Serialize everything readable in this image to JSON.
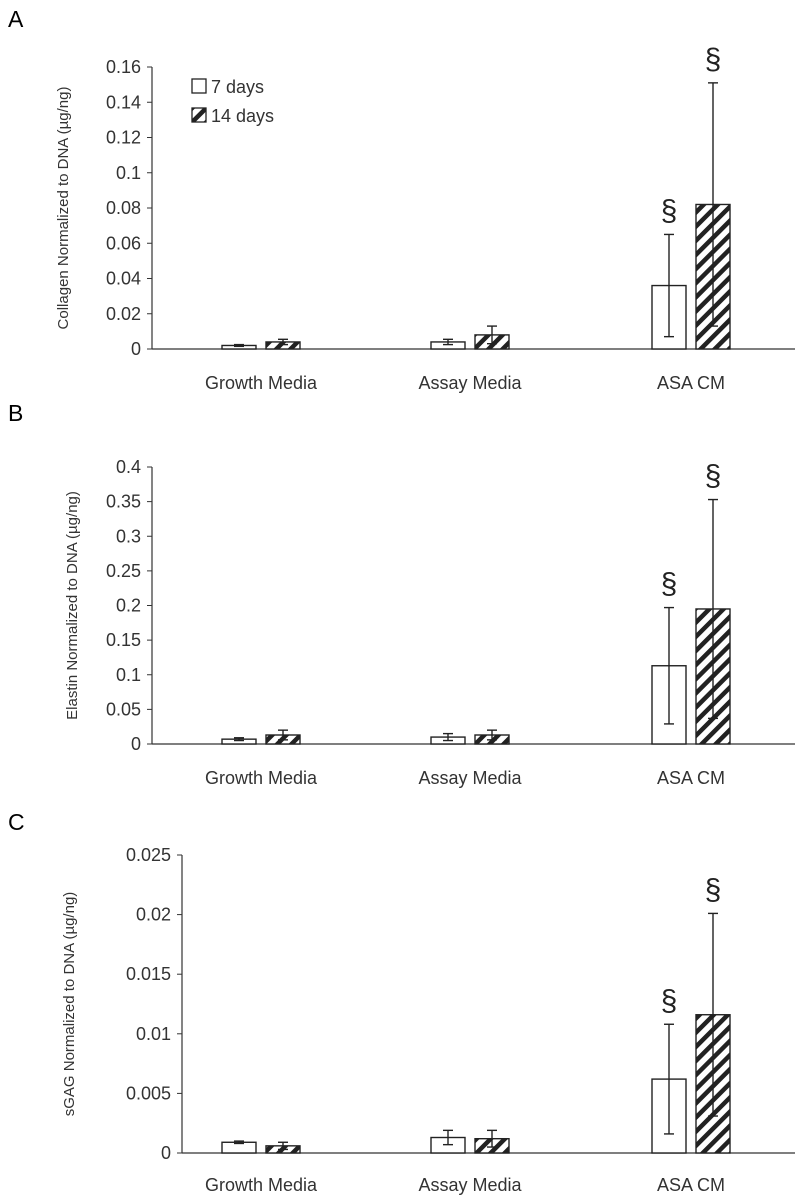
{
  "legend": [
    "7 days",
    "14 days"
  ],
  "chart_data": [
    {
      "panel": "A",
      "type": "bar",
      "ylabel": "Collagen Normalized to DNA (µg/ng)",
      "ylim": [
        0,
        0.16
      ],
      "yticks": [
        "0",
        "0.02",
        "0.04",
        "0.06",
        "0.08",
        "0.1",
        "0.12",
        "0.14",
        "0.16"
      ],
      "categories": [
        "Growth Media",
        "Assay Media",
        "ASA CM"
      ],
      "series": [
        {
          "name": "7 days",
          "values": [
            0.002,
            0.004,
            0.036
          ],
          "errors": [
            0.0005,
            0.0015,
            0.029
          ]
        },
        {
          "name": "14 days",
          "values": [
            0.004,
            0.008,
            0.082
          ],
          "errors": [
            0.0015,
            0.005,
            0.069
          ]
        }
      ],
      "annotations": [
        {
          "category": "ASA CM",
          "series": "7 days",
          "text": "§"
        },
        {
          "category": "ASA CM",
          "series": "14 days",
          "text": "§"
        }
      ],
      "legend_position": "top-left",
      "grid": false
    },
    {
      "panel": "B",
      "type": "bar",
      "ylabel": "Elastin Normalized to DNA (µg/ng)",
      "ylim": [
        0,
        0.4
      ],
      "yticks": [
        "0",
        "0.05",
        "0.1",
        "0.15",
        "0.2",
        "0.25",
        "0.3",
        "0.35",
        "0.4"
      ],
      "categories": [
        "Growth Media",
        "Assay Media",
        "ASA CM"
      ],
      "series": [
        {
          "name": "7 days",
          "values": [
            0.007,
            0.01,
            0.113
          ],
          "errors": [
            0.002,
            0.005,
            0.084
          ]
        },
        {
          "name": "14 days",
          "values": [
            0.013,
            0.013,
            0.195
          ],
          "errors": [
            0.007,
            0.007,
            0.158
          ]
        }
      ],
      "annotations": [
        {
          "category": "ASA CM",
          "series": "7 days",
          "text": "§"
        },
        {
          "category": "ASA CM",
          "series": "14 days",
          "text": "§"
        }
      ],
      "grid": false
    },
    {
      "panel": "C",
      "type": "bar",
      "ylabel": "sGAG Normalized to DNA (µg/ng)",
      "ylim": [
        0,
        0.025
      ],
      "yticks": [
        "0",
        "0.005",
        "0.01",
        "0.015",
        "0.02",
        "0.025"
      ],
      "categories": [
        "Growth Media",
        "Assay Media",
        "ASA CM"
      ],
      "series": [
        {
          "name": "7 days",
          "values": [
            0.0009,
            0.0013,
            0.0062
          ],
          "errors": [
            0.0001,
            0.0006,
            0.0046
          ]
        },
        {
          "name": "14 days",
          "values": [
            0.0006,
            0.0012,
            0.0116
          ],
          "errors": [
            0.0003,
            0.0007,
            0.0085
          ]
        }
      ],
      "annotations": [
        {
          "category": "ASA CM",
          "series": "7 days",
          "text": "§"
        },
        {
          "category": "ASA CM",
          "series": "14 days",
          "text": "§"
        }
      ],
      "grid": false
    }
  ]
}
